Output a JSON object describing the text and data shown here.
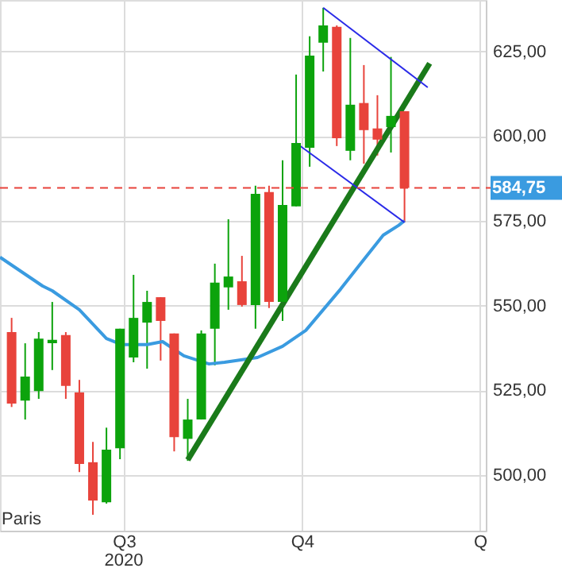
{
  "chart_data": {
    "type": "candlestick",
    "x": [
      "2020-05-04",
      "2020-05-11",
      "2020-05-18",
      "2020-05-25",
      "2020-06-01",
      "2020-06-08",
      "2020-06-15",
      "2020-06-22",
      "2020-06-29",
      "2020-07-06",
      "2020-07-13",
      "2020-07-20",
      "2020-07-27",
      "2020-08-03",
      "2020-08-10",
      "2020-08-17",
      "2020-08-24",
      "2020-08-31",
      "2020-09-07",
      "2020-09-14",
      "2020-09-21",
      "2020-09-28",
      "2020-10-05",
      "2020-10-12",
      "2020-10-19",
      "2020-10-26",
      "2020-11-02",
      "2020-11-09",
      "2020-11-16",
      "2020-11-23"
    ],
    "ohlc": [
      [
        542.2,
        546.4,
        520.1,
        521.1
      ],
      [
        522.0,
        538.9,
        516.4,
        529.1
      ],
      [
        524.8,
        542.2,
        522.5,
        540.3
      ],
      [
        538.9,
        551.1,
        531.0,
        539.9
      ],
      [
        541.3,
        542.2,
        522.5,
        526.3
      ],
      [
        524.4,
        528.1,
        500.9,
        503.3
      ],
      [
        503.8,
        509.8,
        488.3,
        492.5
      ],
      [
        492.0,
        514.0,
        491.6,
        507.5
      ],
      [
        507.9,
        543.2,
        504.7,
        543.2
      ],
      [
        534.7,
        559.1,
        533.3,
        546.4
      ],
      [
        545.0,
        554.4,
        531.4,
        551.1
      ],
      [
        552.5,
        552.5,
        533.8,
        545.5
      ],
      [
        541.8,
        541.8,
        507.0,
        511.2
      ],
      [
        510.7,
        522.5,
        504.2,
        516.4
      ],
      [
        516.4,
        542.7,
        516.4,
        541.8
      ],
      [
        543.2,
        562.4,
        532.4,
        556.8
      ],
      [
        555.4,
        575.5,
        548.8,
        558.6
      ],
      [
        557.2,
        564.7,
        549.7,
        550.2
      ],
      [
        550.2,
        585.4,
        543.2,
        583.0
      ],
      [
        583.5,
        585.4,
        549.3,
        551.1
      ],
      [
        551.1,
        592.9,
        545.5,
        579.7
      ],
      [
        579.3,
        618.2,
        579.3,
        598.0
      ],
      [
        596.6,
        629.5,
        591.0,
        623.8
      ],
      [
        627.6,
        637.9,
        619.1,
        632.7
      ],
      [
        632.3,
        632.7,
        597.1,
        599.4
      ],
      [
        595.7,
        629.0,
        592.9,
        609.3
      ],
      [
        609.8,
        621.0,
        591.9,
        601.8
      ],
      [
        602.3,
        612.1,
        594.3,
        599.0
      ],
      [
        602.7,
        623.4,
        595.2,
        606.0
      ],
      [
        607.4,
        607.4,
        574.6,
        584.75
      ]
    ],
    "colors": [
      "#e8433b",
      "#0ca30c",
      "#0ca30c",
      "#0ca30c",
      "#e8433b",
      "#e8433b",
      "#e8433b",
      "#0ca30c",
      "#0ca30c",
      "#0ca30c",
      "#0ca30c",
      "#e8433b",
      "#e8433b",
      "#0ca30c",
      "#0ca30c",
      "#0ca30c",
      "#0ca30c",
      "#e8433b",
      "#0ca30c",
      "#e8433b",
      "#0ca30c",
      "#0ca30c",
      "#0ca30c",
      "#0ca30c",
      "#e8433b",
      "#0ca30c",
      "#e8433b",
      "#e8433b",
      "#0ca30c",
      "#e8433b"
    ],
    "series": [
      {
        "type": "line",
        "color": "#3a9be0",
        "x": [
          "2020-04-28",
          "2020-05-20",
          "2020-05-25",
          "2020-06-08",
          "2020-06-22",
          "2020-06-30",
          "2020-07-13",
          "2020-07-21",
          "2020-08-01",
          "2020-08-14",
          "2020-08-22",
          "2020-09-08",
          "2020-09-21",
          "2020-10-03",
          "2020-10-21",
          "2020-11-01",
          "2020-11-12",
          "2020-11-20",
          "2020-11-23"
        ],
        "values": [
          564.3,
          555.8,
          554.4,
          548.8,
          540.3,
          538.5,
          538.5,
          539.4,
          535.2,
          532.8,
          533.3,
          534.7,
          538.0,
          542.7,
          554.9,
          562.9,
          570.8,
          573.7,
          575.1
        ]
      },
      {
        "type": "line",
        "color": "#1a7a1a",
        "x": [
          "2020-08-03",
          "2020-12-06"
        ],
        "values": [
          504.5,
          621.5
        ]
      },
      {
        "type": "line",
        "color": "#2a2ae8",
        "x": [
          "2020-10-12",
          "2020-12-05"
        ],
        "values": [
          637.9,
          614.4
        ]
      },
      {
        "type": "line",
        "color": "#2a2ae8",
        "x": [
          "2020-09-28",
          "2020-11-23"
        ],
        "values": [
          598.0,
          574.6
        ]
      }
    ],
    "xlim": [
      "2020-04-28",
      "2021-01-04"
    ],
    "xticks": [
      {
        "value": "2020-07-01",
        "label": "Q3"
      },
      {
        "value": "2020-10-01",
        "label": "Q4"
      },
      {
        "value": "2021-01-01",
        "label": "Q"
      }
    ],
    "ylim": [
      483.6,
      640.2
    ],
    "yticks": [
      {
        "value": 500,
        "label": "500,00"
      },
      {
        "value": 525,
        "label": "525,00"
      },
      {
        "value": 550,
        "label": "550,00"
      },
      {
        "value": 575,
        "label": "575,00"
      },
      {
        "value": 600,
        "label": "600,00"
      },
      {
        "value": 625,
        "label": "625,00"
      }
    ],
    "ref_lines": [
      {
        "axis": "y",
        "value": 584.75,
        "label": "584,75",
        "color": "#e8433b",
        "line_style": "dashed"
      }
    ],
    "annotations": [
      "Paris",
      "2020"
    ],
    "grid": true
  }
}
